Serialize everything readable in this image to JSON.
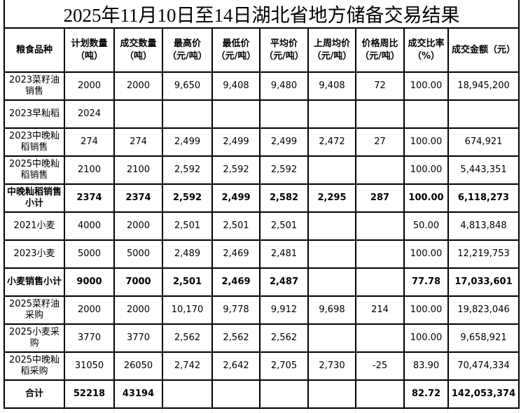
{
  "title": "2025年11月10日至14日湖北省地方储备交易结果",
  "table": {
    "headers": [
      "粮食品种",
      "计划数量\n（吨）",
      "成交数量\n（吨）",
      "最高价\n（元/吨）",
      "最低价\n（元/吨）",
      "平均价\n（元/吨）",
      "上周均价\n（元/吨）",
      "价格周比\n（元/吨）",
      "成交比率\n（%）",
      "成交金额（元）"
    ],
    "rows": [
      {
        "bold": false,
        "cells": [
          "2023菜籽油销售",
          "2000",
          "2000",
          "9,650",
          "9,408",
          "9,480",
          "9,408",
          "72",
          "100.00",
          "18,945,200"
        ]
      },
      {
        "bold": false,
        "cells": [
          "2023早籼稻",
          "2024",
          "",
          "",
          "",
          "",
          "",
          "",
          "",
          ""
        ]
      },
      {
        "bold": false,
        "cells": [
          "2023中晚籼稻销售",
          "274",
          "274",
          "2,499",
          "2,499",
          "2,499",
          "2,472",
          "27",
          "100.00",
          "674,921"
        ]
      },
      {
        "bold": false,
        "cells": [
          "2025中晚籼稻销售",
          "2100",
          "2100",
          "2,592",
          "2,592",
          "2,592",
          "",
          "",
          "100.00",
          "5,443,351"
        ]
      },
      {
        "bold": true,
        "cells": [
          "中晚籼稻销售小计",
          "2374",
          "2374",
          "2,592",
          "2,499",
          "2,582",
          "2,295",
          "287",
          "100.00",
          "6,118,273"
        ]
      },
      {
        "bold": false,
        "cells": [
          "2021小麦",
          "4000",
          "2000",
          "2,501",
          "2,501",
          "2,501",
          "",
          "",
          "50.00",
          "4,813,848"
        ]
      },
      {
        "bold": false,
        "cells": [
          "2023小麦",
          "5000",
          "5000",
          "2,489",
          "2,469",
          "2,481",
          "",
          "",
          "100.00",
          "12,219,753"
        ]
      },
      {
        "bold": true,
        "cells": [
          "小麦销售小计",
          "9000",
          "7000",
          "2,501",
          "2,469",
          "2,487",
          "",
          "",
          "77.78",
          "17,033,601"
        ]
      },
      {
        "bold": false,
        "cells": [
          "2025菜籽油采购",
          "2000",
          "2000",
          "10,170",
          "9,778",
          "9,912",
          "9,698",
          "214",
          "100.00",
          "19,823,046"
        ]
      },
      {
        "bold": false,
        "cells": [
          "2025小麦采购",
          "3770",
          "3770",
          "2,562",
          "2,562",
          "2,562",
          "",
          "",
          "100.00",
          "9,658,921"
        ]
      },
      {
        "bold": false,
        "cells": [
          "2025中晚籼稻采购",
          "31050",
          "26050",
          "2,742",
          "2,642",
          "2,705",
          "2,730",
          "-25",
          "83.90",
          "70,474,334"
        ]
      },
      {
        "bold": true,
        "cells": [
          "合计",
          "52218",
          "43194",
          "",
          "",
          "",
          "",
          "",
          "82.72",
          "142,053,374"
        ]
      }
    ]
  }
}
